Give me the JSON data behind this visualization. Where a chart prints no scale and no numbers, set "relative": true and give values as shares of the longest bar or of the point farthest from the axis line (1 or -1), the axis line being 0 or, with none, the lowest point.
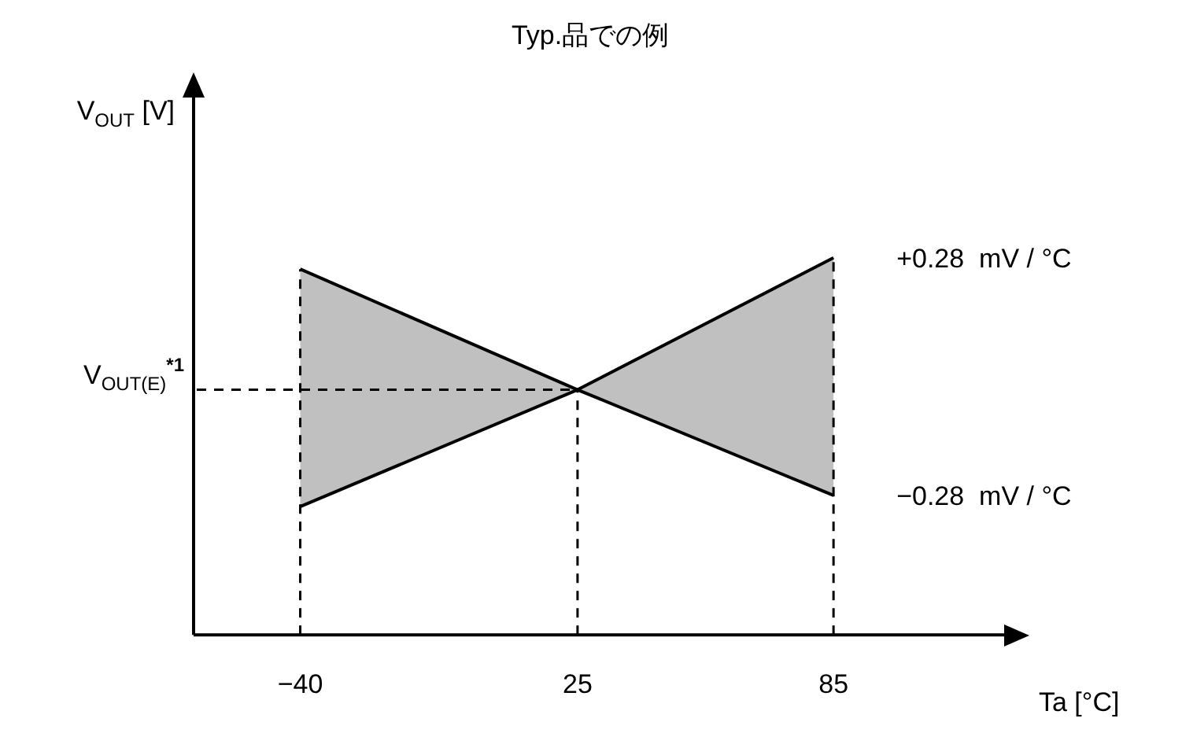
{
  "chart_data": {
    "type": "line",
    "title": "Typ.品での例",
    "xlabel": "Ta [°C]",
    "ylabel": "V$_{OUT}$ [V]",
    "x": [
      -40,
      25,
      85
    ],
    "xlim": [
      -65,
      125
    ],
    "xticks": [
      {
        "value": -40,
        "label": "−40"
      },
      25,
      85
    ],
    "relative": true,
    "legend": false,
    "marker": "none",
    "line_style": "solid",
    "series": [
      {
        "color": "#000000",
        "values": [
          0.34,
          0.65,
          1.0
        ],
        "lower": [
          0.34,
          0.65,
          0.37
        ],
        "upper": [
          0.97,
          0.65,
          1.0
        ]
      },
      {
        "color": "#000000",
        "values": [
          0.97,
          0.65,
          0.37
        ]
      }
    ],
    "ref_lines": [
      {
        "axis": "y",
        "value": 0.65,
        "label": "V$_{OUT(E)}$$^{*1}$",
        "line_style": "dashed"
      },
      {
        "axis": "x",
        "value": -40,
        "line_style": "dashed"
      },
      {
        "axis": "x",
        "value": 25,
        "line_style": "dashed"
      },
      {
        "axis": "x",
        "value": 85,
        "line_style": "dashed"
      }
    ],
    "annotations": [
      {
        "text": "+0.28  mV / °C",
        "x": 85,
        "y": 1.0
      },
      {
        "text": "−0.28  mV / °C",
        "x": 85,
        "y": 0.37
      }
    ]
  }
}
